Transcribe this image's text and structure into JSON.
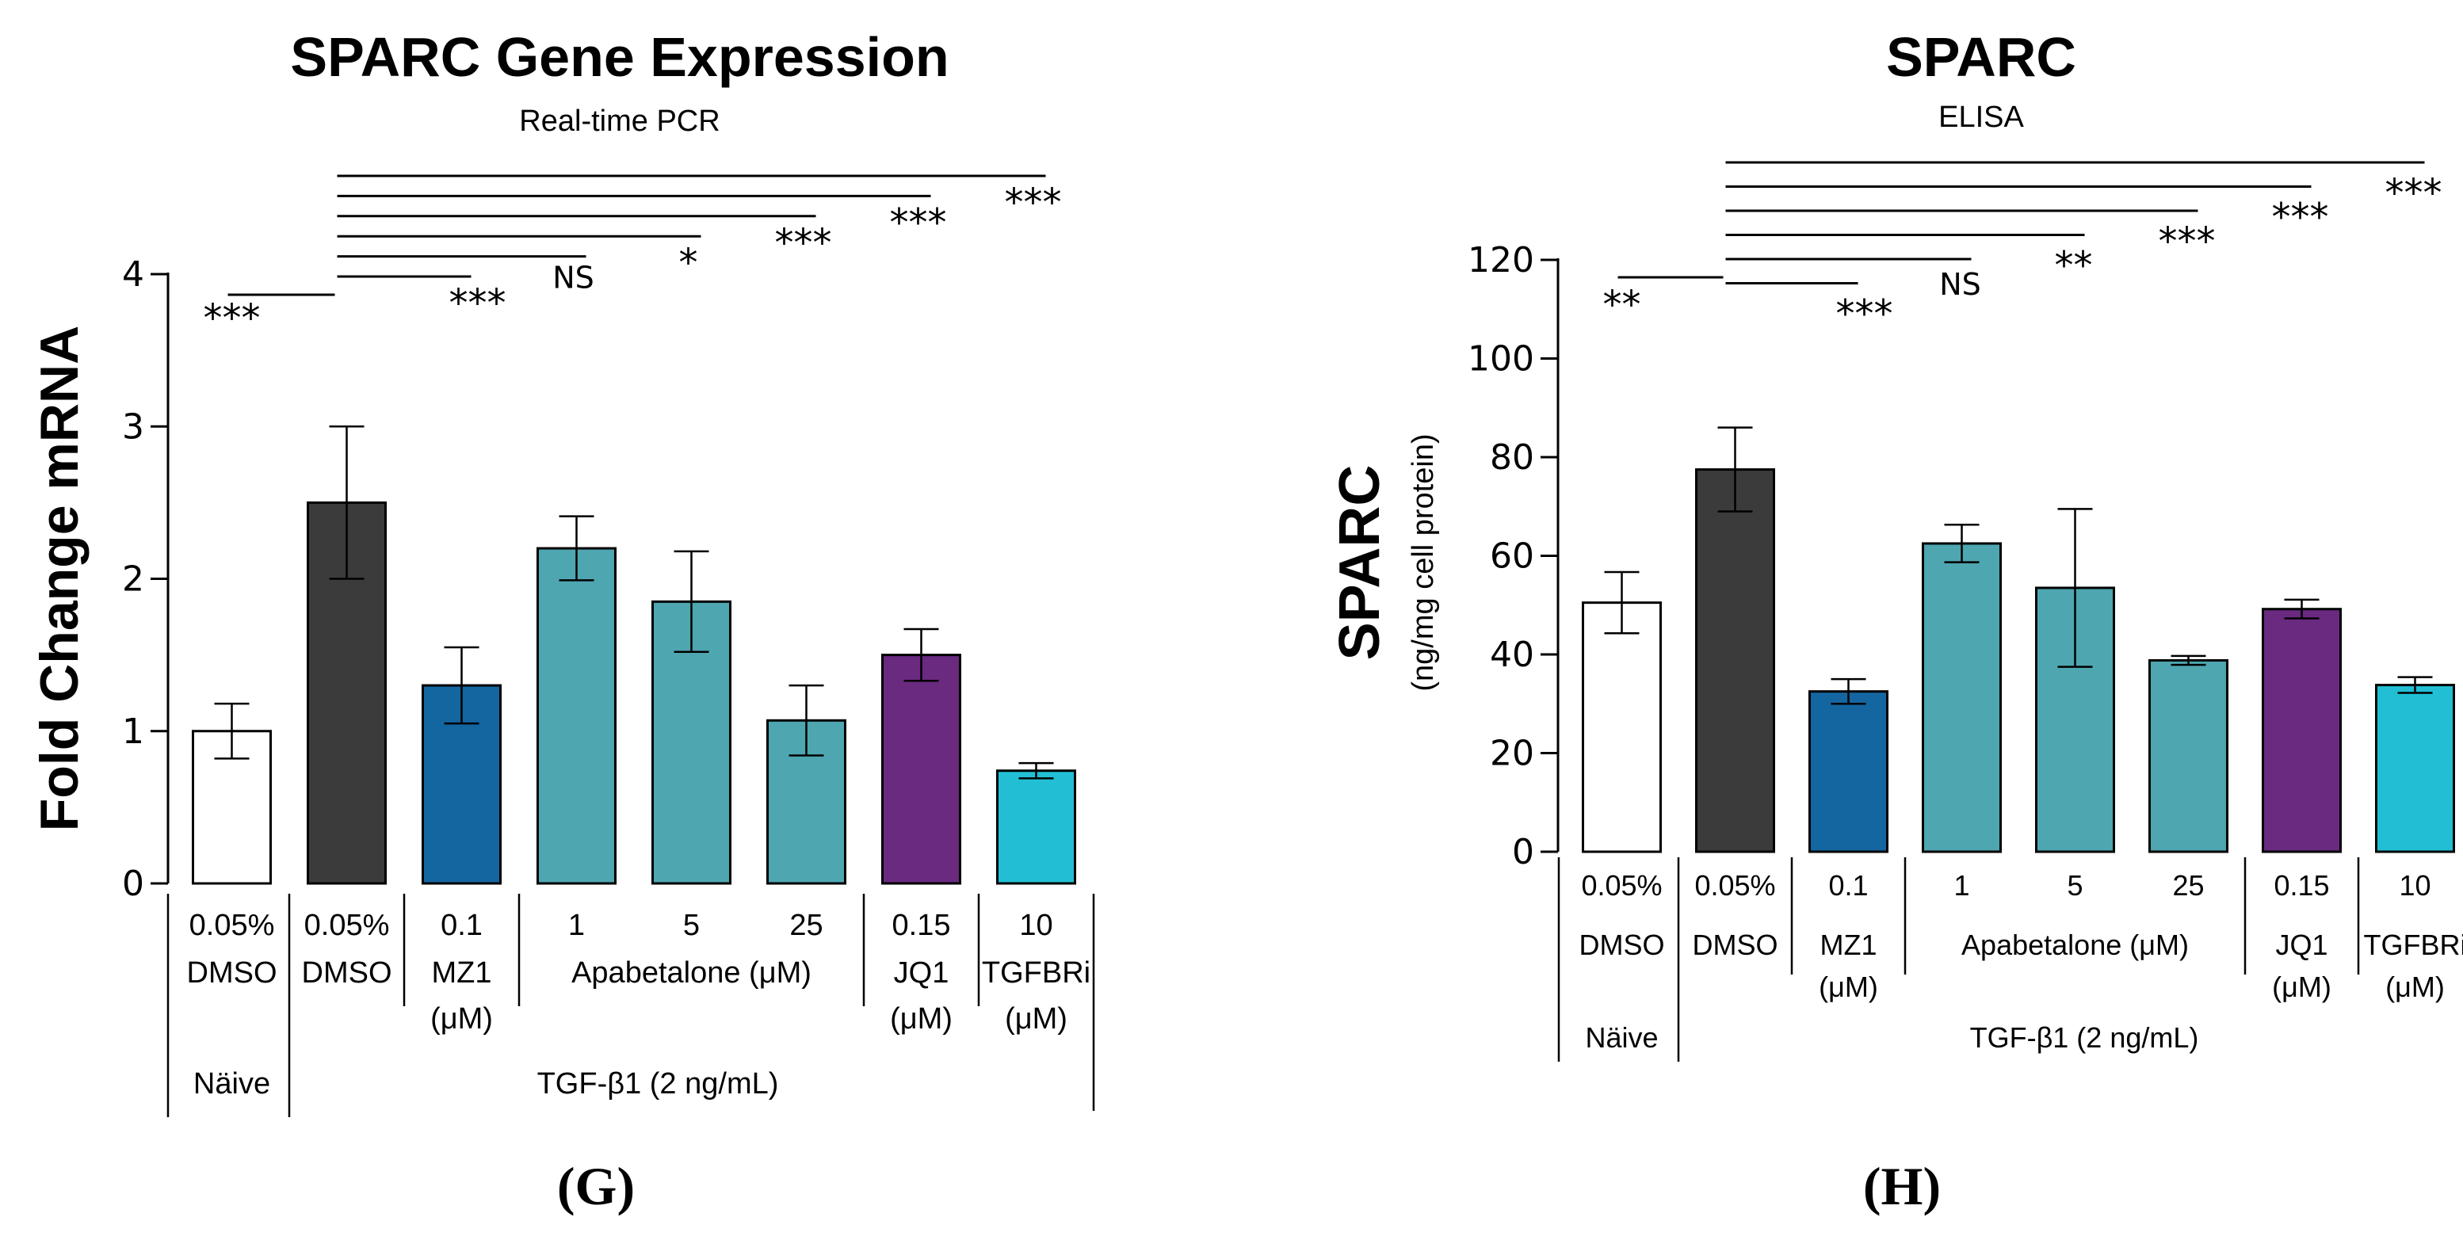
{
  "chart_data": [
    {
      "type": "bar",
      "panel_label": "(G)",
      "title": "SPARC Gene Expression",
      "subtitle": "Real-time PCR",
      "ylabel": "Fold Change mRNA",
      "ylabel_sub": "",
      "ylim": [
        0,
        4
      ],
      "yticks": [
        "0",
        "1",
        "2",
        "3",
        "4"
      ],
      "ytick_values": [
        0,
        1,
        2,
        3,
        4
      ],
      "categories": [
        "0.05% DMSO",
        "0.05% DMSO",
        "0.1 MZ1",
        "1 Apabetalone",
        "5 Apabetalone",
        "25 Apabetalone",
        "0.15 JQ1",
        "10 TGFBRi"
      ],
      "values": [
        1.0,
        2.5,
        1.3,
        2.2,
        1.85,
        1.07,
        1.5,
        0.74
      ],
      "errors": [
        0.18,
        0.5,
        0.25,
        0.21,
        0.33,
        0.23,
        0.17,
        0.05
      ],
      "colors": [
        "#ffffff",
        "#3b3b3b",
        "#1466a0",
        "#4ea6b0",
        "#4ea6b0",
        "#4ea6b0",
        "#6a2a80",
        "#22bfd4"
      ],
      "row1": [
        "0.05%",
        "0.05%",
        "0.1",
        "1",
        "5",
        "25",
        "0.15",
        "10"
      ],
      "row2_single": [
        "DMSO",
        "DMSO"
      ],
      "group_labels": [
        {
          "line1": "MZ1",
          "line2": "(μM)"
        },
        {
          "line1": "Apabetalone (μM)",
          "line2": ""
        },
        {
          "line1": "JQ1",
          "line2": "(μM)"
        },
        {
          "line1": "TGFBRi",
          "line2": "(μM)"
        }
      ],
      "naive_label": "Näive",
      "treatment_label": "TGF-β1 (2 ng/mL)",
      "significance": [
        {
          "from": 0,
          "to": 1,
          "label": "***"
        },
        {
          "from": 1,
          "to": 2,
          "label": "***"
        },
        {
          "from": 1,
          "to": 3,
          "label": "NS"
        },
        {
          "from": 1,
          "to": 4,
          "label": "*"
        },
        {
          "from": 1,
          "to": 5,
          "label": "***"
        },
        {
          "from": 1,
          "to": 6,
          "label": "***"
        },
        {
          "from": 1,
          "to": 7,
          "label": "***"
        }
      ]
    },
    {
      "type": "bar",
      "panel_label": "(H)",
      "title": "SPARC",
      "subtitle": "ELISA",
      "ylabel": "SPARC",
      "ylabel_sub": "(ng/mg cell protein)",
      "ylim": [
        0,
        120
      ],
      "yticks": [
        "0",
        "20",
        "40",
        "60",
        "80",
        "100",
        "120"
      ],
      "ytick_values": [
        0,
        20,
        40,
        60,
        80,
        100,
        120
      ],
      "categories": [
        "0.05% DMSO",
        "0.05% DMSO",
        "0.1 MZ1",
        "1 Apabetalone",
        "5 Apabetalone",
        "25 Apabetalone",
        "0.15 JQ1",
        "10 TGFBRi"
      ],
      "values": [
        50.5,
        77.5,
        32.5,
        62.5,
        53.5,
        38.8,
        49.2,
        33.8
      ],
      "errors": [
        6.2,
        8.5,
        2.5,
        3.8,
        16.0,
        0.9,
        1.9,
        1.6
      ],
      "colors": [
        "#ffffff",
        "#3b3b3b",
        "#1466a0",
        "#4ea6b0",
        "#4ea6b0",
        "#4ea6b0",
        "#6a2a80",
        "#22bfd4"
      ],
      "row1": [
        "0.05%",
        "0.05%",
        "0.1",
        "1",
        "5",
        "25",
        "0.15",
        "10"
      ],
      "row2_single": [
        "DMSO",
        "DMSO"
      ],
      "group_labels": [
        {
          "line1": "MZ1",
          "line2": "(μM)"
        },
        {
          "line1": "Apabetalone (μM)",
          "line2": ""
        },
        {
          "line1": "JQ1",
          "line2": "(μM)"
        },
        {
          "line1": "TGFBRi",
          "line2": "(μM)"
        }
      ],
      "naive_label": "Näive",
      "treatment_label": "TGF-β1 (2 ng/mL)",
      "significance": [
        {
          "from": 0,
          "to": 1,
          "label": "**"
        },
        {
          "from": 1,
          "to": 2,
          "label": "***"
        },
        {
          "from": 1,
          "to": 3,
          "label": "NS"
        },
        {
          "from": 1,
          "to": 4,
          "label": "**"
        },
        {
          "from": 1,
          "to": 5,
          "label": "***"
        },
        {
          "from": 1,
          "to": 6,
          "label": "***"
        },
        {
          "from": 1,
          "to": 7,
          "label": "***"
        }
      ]
    }
  ]
}
